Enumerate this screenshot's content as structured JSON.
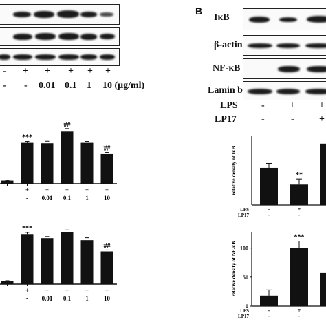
{
  "panel_b_label": "B",
  "left_treatment_row": {
    "plus_signs": [
      "+",
      "+",
      "+",
      "+",
      "+"
    ],
    "dose_labels": [
      "-",
      "-",
      "0.01",
      "0.1",
      "1",
      "10 (μg/ml)"
    ],
    "minus_first": "-"
  },
  "right_blots": [
    {
      "label": "IκB"
    },
    {
      "label": "β-actin"
    },
    {
      "label": "NF-κB"
    },
    {
      "label": "Lamin b"
    }
  ],
  "right_treatment": {
    "lps_label": "LPS",
    "lp17_label": "LP17",
    "lps_values": [
      "-",
      "+",
      "+"
    ],
    "lp17_values": [
      "-",
      "-",
      "+"
    ]
  },
  "chart_data": [
    {
      "type": "bar",
      "panel": "left-top",
      "categories": [
        "",
        "",
        "0.01",
        "0.1",
        "1",
        "10"
      ],
      "row1": [
        "",
        "+",
        "+",
        "+",
        "+",
        "+"
      ],
      "row2": [
        "",
        "-",
        "0.01",
        "0.1",
        "1",
        "10"
      ],
      "values": [
        0.15,
        2.0,
        1.98,
        2.55,
        2.0,
        1.45
      ],
      "errors": [
        0.02,
        0.07,
        0.1,
        0.15,
        0.07,
        0.08
      ],
      "annotations": [
        "",
        "***",
        "",
        "##",
        "",
        "##"
      ],
      "ylim": [
        0,
        3.2
      ]
    },
    {
      "type": "bar",
      "panel": "left-bottom",
      "categories": [
        "",
        "",
        "0.01",
        "0.1",
        "1",
        "10"
      ],
      "row1": [
        "",
        "+",
        "+",
        "+",
        "+",
        "+"
      ],
      "row2": [
        "",
        "-",
        "0.01",
        "0.1",
        "1",
        "10"
      ],
      "values": [
        0.15,
        2.45,
        2.25,
        2.55,
        2.15,
        1.6
      ],
      "errors": [
        0.02,
        0.08,
        0.08,
        0.1,
        0.12,
        0.07
      ],
      "annotations": [
        "",
        "***",
        "",
        "",
        "",
        "##"
      ],
      "ylim": [
        0,
        3.2
      ]
    },
    {
      "type": "bar",
      "panel": "right-top",
      "ylabel": "relative density of IκB",
      "categories": [
        "",
        "",
        ""
      ],
      "lps": [
        "-",
        "+",
        ""
      ],
      "lp17": [
        "-",
        "-",
        ""
      ],
      "row_labels": [
        "LPS",
        "LP17"
      ],
      "values": [
        100,
        55,
        165
      ],
      "errors": [
        12,
        15,
        10
      ],
      "annotations": [
        "",
        "**",
        "#"
      ],
      "ylim": [
        0,
        185
      ]
    },
    {
      "type": "bar",
      "panel": "right-bottom",
      "ylabel": "relative density of NF-κB",
      "yticks": [
        "0",
        "50",
        "100"
      ],
      "categories": [
        "",
        "",
        ""
      ],
      "lps": [
        "-",
        "+",
        ""
      ],
      "lp17": [
        "-",
        "-",
        ""
      ],
      "row_labels": [
        "LPS",
        "LP17"
      ],
      "values": [
        18,
        100,
        57
      ],
      "errors": [
        10,
        12,
        8
      ],
      "annotations": [
        "",
        "***",
        "#"
      ],
      "ylim": [
        0,
        128
      ]
    }
  ]
}
